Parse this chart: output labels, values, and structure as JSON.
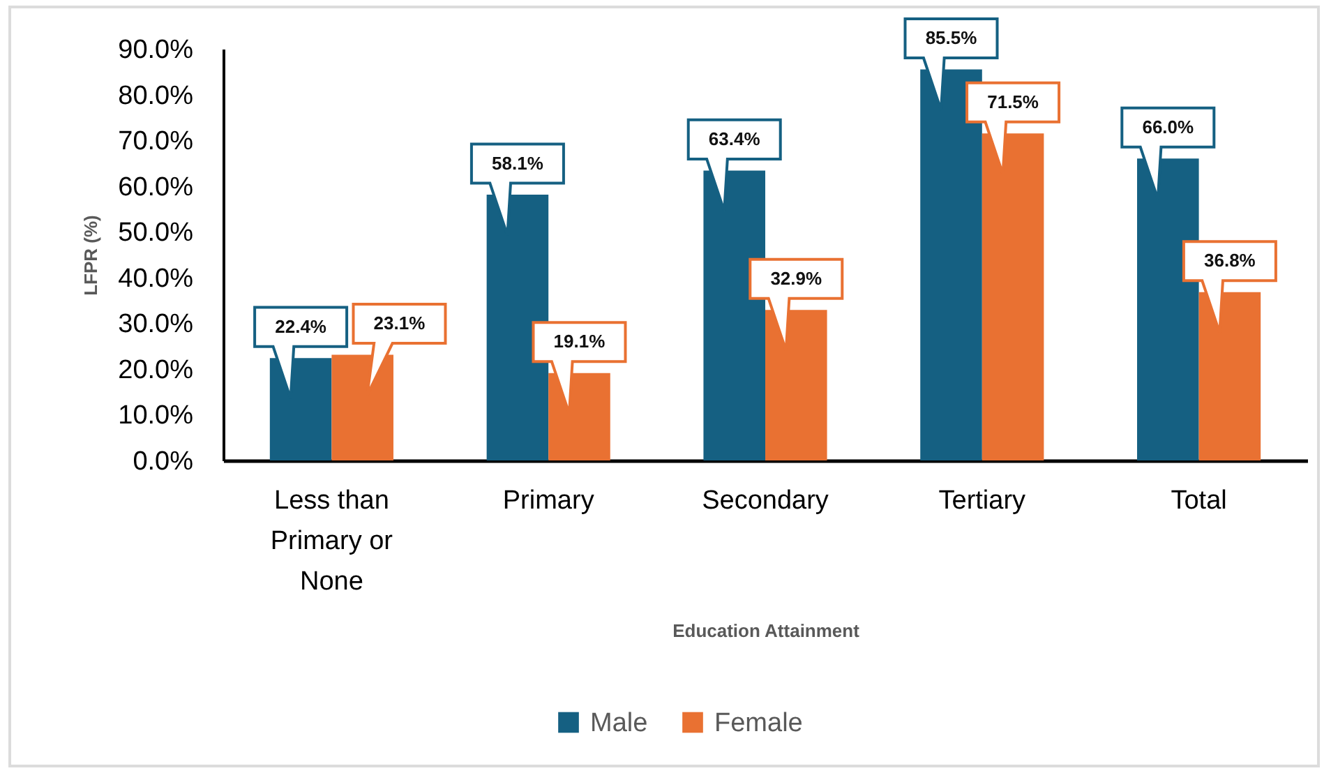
{
  "chart_data": {
    "type": "bar",
    "xlabel": "Education Attainment",
    "ylabel": "LFPR (%)",
    "categories": [
      "Less than Primary or None",
      "Primary",
      "Secondary",
      "Tertiary",
      "Total"
    ],
    "series": [
      {
        "name": "Male",
        "color": "#156082",
        "values": [
          22.4,
          58.1,
          63.4,
          85.5,
          66.0
        ],
        "value_labels": [
          "22.4%",
          "58.1%",
          "63.4%",
          "85.5%",
          "66.0%"
        ]
      },
      {
        "name": "Female",
        "color": "#e97132",
        "values": [
          23.1,
          19.1,
          32.9,
          71.5,
          36.8
        ],
        "value_labels": [
          "23.1%",
          "19.1%",
          "32.9%",
          "71.5%",
          "36.8%"
        ]
      }
    ],
    "ylim": [
      0,
      90
    ],
    "yticks": [
      {
        "value": 0,
        "label": "0.0%"
      },
      {
        "value": 10,
        "label": "10.0%"
      },
      {
        "value": 20,
        "label": "20.0%"
      },
      {
        "value": 30,
        "label": "30.0%"
      },
      {
        "value": 40,
        "label": "40.0%"
      },
      {
        "value": 50,
        "label": "50.0%"
      },
      {
        "value": 60,
        "label": "60.0%"
      },
      {
        "value": 70,
        "label": "70.0%"
      },
      {
        "value": 80,
        "label": "80.0%"
      },
      {
        "value": 90,
        "label": "90.0%"
      }
    ],
    "legend": "bottom"
  }
}
